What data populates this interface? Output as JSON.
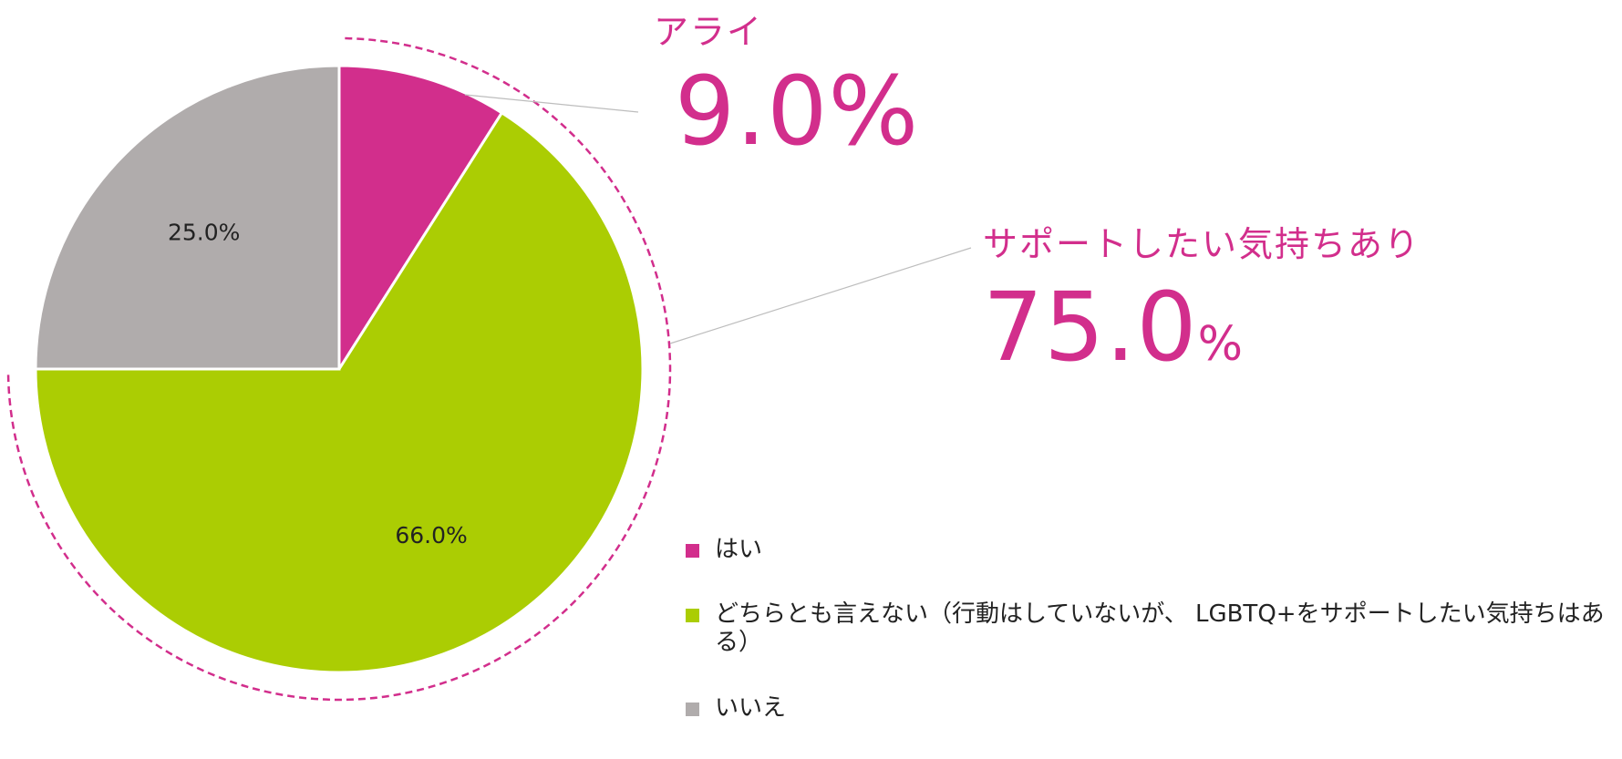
{
  "chart_data": {
    "type": "pie",
    "start_angle_deg": 0,
    "direction": "clockwise",
    "slices": [
      {
        "label": "はい",
        "value": 9.0,
        "data_label": "",
        "color": "#d22e8c"
      },
      {
        "label": "どちらとも言えない（行動はしていないが、 LGBTQ+をサポートしたい気持ちはある）",
        "value": 66.0,
        "data_label": "66.0%",
        "color": "#abcd03"
      },
      {
        "label": "いいえ",
        "value": 25.0,
        "data_label": "25.0%",
        "color": "#b0acac"
      }
    ],
    "legend_placement": "bottom-right"
  },
  "callouts": {
    "ally": {
      "label": "アライ",
      "value": "9.0%"
    },
    "support": {
      "label": "サポートしたい気持ちあり",
      "value_number": "75.0",
      "value_unit": "%"
    }
  },
  "colors": {
    "accent": "#d22e8c",
    "green": "#abcd03",
    "gray": "#b0acac"
  }
}
